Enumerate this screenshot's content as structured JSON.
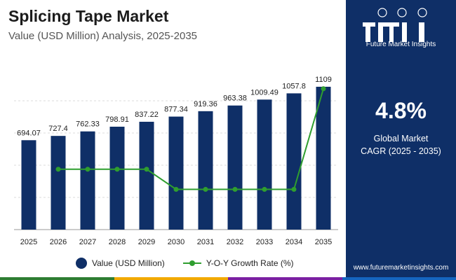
{
  "header": {
    "title": "Splicing Tape Market",
    "subtitle": "Value (USD Million) Analysis, 2025-2035"
  },
  "colors": {
    "bar": "#0f2f67",
    "line": "#2f9e2f",
    "panel": "#0f2f67",
    "bottom_stripe": [
      "#2e7d32",
      "#f2a900",
      "#7b1fa2",
      "#1565c0"
    ]
  },
  "chart_data": {
    "type": "bar",
    "title": "Splicing Tape Market",
    "subtitle": "Value (USD Million) Analysis, 2025-2035",
    "categories": [
      "2025",
      "2026",
      "2027",
      "2028",
      "2029",
      "2030",
      "2031",
      "2032",
      "2033",
      "2034",
      "2035"
    ],
    "series": [
      {
        "name": "Value (USD Million)",
        "type": "bar",
        "values": [
          694.07,
          727.4,
          762.33,
          798.91,
          837.22,
          877.34,
          919.36,
          963.38,
          1009.49,
          1057.8,
          1109
        ],
        "labels": [
          "694.07",
          "727.4",
          "762.33",
          "798.91",
          "837.22",
          "877.34",
          "919.36",
          "963.38",
          "1009.49",
          "1057.8",
          "1109"
        ]
      },
      {
        "name": "Y-O-Y Growth Rate (%)",
        "type": "line",
        "values": [
          null,
          4.8,
          4.8,
          4.8,
          4.8,
          4.79,
          4.79,
          4.79,
          4.79,
          4.79,
          4.84
        ]
      }
    ],
    "xlabel": "",
    "ylabel": "",
    "ylim": [
      0,
      1250
    ],
    "y2lim": [
      4.77,
      4.85
    ],
    "grid": true,
    "legend": "bottom"
  },
  "legend": {
    "bar_label": "Value (USD Million)",
    "line_label": "Y-O-Y Growth Rate (%)"
  },
  "side_panel": {
    "logo_text": "fmi",
    "logo_name": "Future Market Insights",
    "cagr_value": "4.8%",
    "cagr_label_1": "Global Market",
    "cagr_label_2": "CAGR (2025 - 2035)",
    "website": "www.futuremarketinsights.com"
  }
}
